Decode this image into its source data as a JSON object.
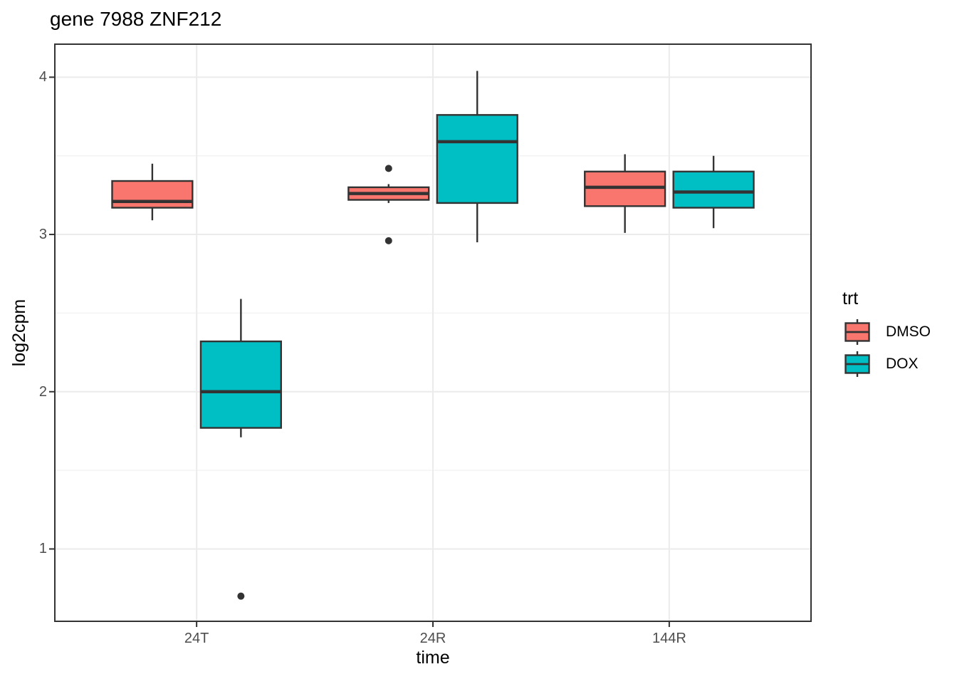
{
  "chart_data": {
    "type": "boxplot",
    "title": "gene 7988 ZNF212",
    "xlabel": "time",
    "ylabel": "log2cpm",
    "categories": [
      "24T",
      "24R",
      "144R"
    ],
    "y_ticks": [
      1,
      2,
      3,
      4
    ],
    "y_minor_ticks": [
      1.5,
      2.5,
      3.5
    ],
    "ylim": [
      0.54,
      4.21
    ],
    "grid": true,
    "legend": {
      "title": "trt",
      "position": "right",
      "entries": [
        {
          "label": "DMSO",
          "color": "#F8766D"
        },
        {
          "label": "DOX",
          "color": "#00BFC4"
        }
      ]
    },
    "series": [
      {
        "name": "DMSO",
        "color": "#F8766D",
        "boxes": [
          {
            "category": "24T",
            "whisker_low": 3.09,
            "q1": 3.17,
            "median": 3.21,
            "q3": 3.34,
            "whisker_high": 3.45,
            "outliers": []
          },
          {
            "category": "24R",
            "whisker_low": 3.2,
            "q1": 3.22,
            "median": 3.26,
            "q3": 3.3,
            "whisker_high": 3.32,
            "outliers": [
              3.42,
              2.96
            ]
          },
          {
            "category": "144R",
            "whisker_low": 3.01,
            "q1": 3.18,
            "median": 3.3,
            "q3": 3.4,
            "whisker_high": 3.51,
            "outliers": []
          }
        ]
      },
      {
        "name": "DOX",
        "color": "#00BFC4",
        "boxes": [
          {
            "category": "24T",
            "whisker_low": 1.71,
            "q1": 1.77,
            "median": 2.0,
            "q3": 2.32,
            "whisker_high": 2.59,
            "outliers": [
              0.7
            ]
          },
          {
            "category": "24R",
            "whisker_low": 2.95,
            "q1": 3.2,
            "median": 3.59,
            "q3": 3.76,
            "whisker_high": 4.04,
            "outliers": []
          },
          {
            "category": "144R",
            "whisker_low": 3.04,
            "q1": 3.17,
            "median": 3.27,
            "q3": 3.4,
            "whisker_high": 3.5,
            "outliers": []
          }
        ]
      }
    ],
    "styles": {
      "box_outline": "#333333",
      "outlier_color": "#333333",
      "panel_border": "#333333",
      "tick_color": "#333333",
      "grid_major": "#EBEBEB",
      "grid_minor": "#F2F2F2",
      "tick_label_color": "#4D4D4D",
      "panel_background": "#FFFFFF"
    }
  }
}
